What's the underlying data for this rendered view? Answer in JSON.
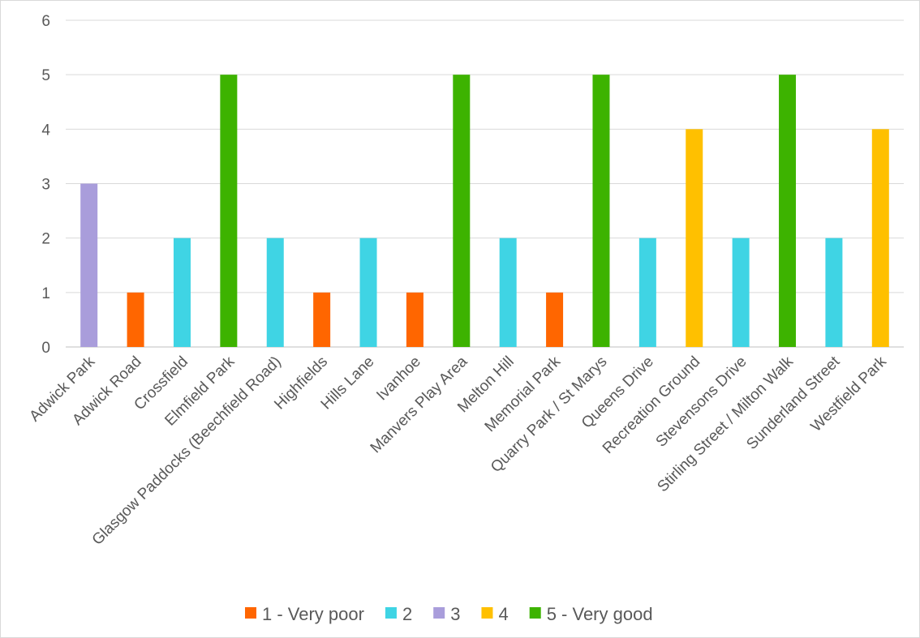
{
  "chart_data": {
    "type": "bar",
    "categories": [
      "Adwick Park",
      "Adwick Road",
      "Crossfield",
      "Elmfield Park",
      "Glasgow Paddocks (Beechfield Road)",
      "Highfields",
      "Hills Lane",
      "Ivanhoe",
      "Manvers Play Area",
      "Melton Hill",
      "Memorial Park",
      "Quarry Park / St Marys",
      "Queens Drive",
      "Recreation Ground",
      "Stevensons Drive",
      "Stirling Street / Milton Walk",
      "Sunderland Street",
      "Westfield Park"
    ],
    "series": [
      {
        "name": "1 - Very poor",
        "color": "#ff6600",
        "values": [
          null,
          1,
          null,
          null,
          null,
          1,
          null,
          1,
          null,
          null,
          1,
          null,
          null,
          null,
          null,
          null,
          null,
          null
        ]
      },
      {
        "name": "2",
        "color": "#3fd4e4",
        "values": [
          null,
          null,
          2,
          null,
          2,
          null,
          2,
          null,
          null,
          2,
          null,
          null,
          2,
          null,
          2,
          null,
          2,
          null
        ]
      },
      {
        "name": "3",
        "color": "#a99ddb",
        "values": [
          3,
          null,
          null,
          null,
          null,
          null,
          null,
          null,
          null,
          null,
          null,
          null,
          null,
          null,
          null,
          null,
          null,
          null
        ]
      },
      {
        "name": "4",
        "color": "#ffc000",
        "values": [
          null,
          null,
          null,
          null,
          null,
          null,
          null,
          null,
          null,
          null,
          null,
          null,
          null,
          4,
          null,
          null,
          null,
          4
        ]
      },
      {
        "name": "5 - Very good",
        "color": "#3db300",
        "values": [
          null,
          null,
          null,
          5,
          null,
          null,
          null,
          null,
          5,
          null,
          null,
          5,
          null,
          null,
          null,
          5,
          null,
          null
        ]
      }
    ],
    "yticks": [
      0,
      1,
      2,
      3,
      4,
      5,
      6
    ],
    "ylim": [
      0,
      6
    ],
    "grid": true,
    "legend_position": "bottom"
  }
}
